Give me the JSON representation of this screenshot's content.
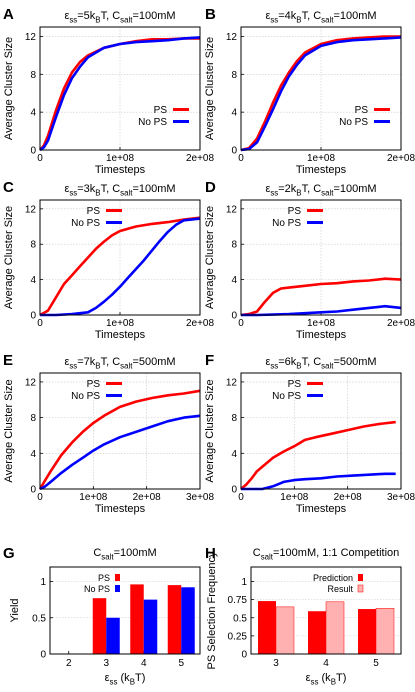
{
  "colors": {
    "ps": "#ff0000",
    "nops": "#0000ff",
    "result": "#ffb0b0",
    "grid": "#c8c8c8",
    "axis": "#000000"
  },
  "chart_data": [
    {
      "panel": "A",
      "type": "line",
      "title_parts": [
        "ε",
        "ss",
        "=5k",
        "B",
        "T, C",
        "salt",
        "=100mM"
      ],
      "xlabel": "Timesteps",
      "ylabel": "Average Cluster Size",
      "xlim": [
        0,
        200000000
      ],
      "ylim": [
        0,
        13
      ],
      "xticks": [
        0,
        100000000,
        200000000
      ],
      "xtick_labels": [
        "0",
        "1e+08",
        "2e+08"
      ],
      "yticks": [
        0,
        4,
        8,
        12
      ],
      "ytick_labels": [
        "0",
        "4",
        "8",
        "12"
      ],
      "legend_position": "bottom-right",
      "series": [
        {
          "name": "PS",
          "color": "#ff0000",
          "x": [
            0,
            5000000,
            10000000,
            20000000,
            30000000,
            40000000,
            50000000,
            60000000,
            80000000,
            100000000,
            120000000,
            140000000,
            160000000,
            180000000,
            200000000
          ],
          "y": [
            0,
            0.5,
            1.5,
            4.2,
            6.5,
            8.2,
            9.3,
            10.0,
            10.8,
            11.2,
            11.5,
            11.7,
            11.7,
            11.8,
            11.8
          ]
        },
        {
          "name": "No PS",
          "color": "#0000ff",
          "x": [
            0,
            5000000,
            10000000,
            20000000,
            30000000,
            40000000,
            50000000,
            60000000,
            80000000,
            100000000,
            120000000,
            140000000,
            160000000,
            180000000,
            200000000
          ],
          "y": [
            0,
            0.3,
            1.0,
            3.5,
            5.8,
            7.6,
            8.8,
            9.8,
            10.8,
            11.2,
            11.4,
            11.5,
            11.6,
            11.8,
            11.9
          ]
        }
      ]
    },
    {
      "panel": "B",
      "type": "line",
      "title_parts": [
        "ε",
        "ss",
        "=4k",
        "B",
        "T, C",
        "salt",
        "=100mM"
      ],
      "xlabel": "Timesteps",
      "ylabel": "Average Cluster Size",
      "xlim": [
        0,
        200000000
      ],
      "ylim": [
        0,
        13
      ],
      "xticks": [
        0,
        100000000,
        200000000
      ],
      "xtick_labels": [
        "0",
        "1e+08",
        "2e+08"
      ],
      "yticks": [
        0,
        4,
        8,
        12
      ],
      "ytick_labels": [
        "0",
        "4",
        "8",
        "12"
      ],
      "legend_position": "bottom-right",
      "series": [
        {
          "name": "PS",
          "color": "#ff0000",
          "x": [
            0,
            10000000,
            20000000,
            30000000,
            40000000,
            50000000,
            60000000,
            70000000,
            80000000,
            100000000,
            120000000,
            140000000,
            160000000,
            180000000,
            200000000
          ],
          "y": [
            0,
            0.2,
            1.2,
            3.0,
            5.0,
            6.8,
            8.2,
            9.4,
            10.3,
            11.2,
            11.6,
            11.8,
            11.9,
            12.0,
            12.0
          ]
        },
        {
          "name": "No PS",
          "color": "#0000ff",
          "x": [
            0,
            10000000,
            20000000,
            30000000,
            40000000,
            50000000,
            60000000,
            70000000,
            80000000,
            100000000,
            120000000,
            140000000,
            160000000,
            180000000,
            200000000
          ],
          "y": [
            0,
            0.1,
            0.8,
            2.5,
            4.3,
            6.2,
            7.8,
            9.0,
            10.0,
            11.0,
            11.4,
            11.6,
            11.7,
            11.8,
            11.9
          ]
        }
      ]
    },
    {
      "panel": "C",
      "type": "line",
      "title_parts": [
        "ε",
        "ss",
        "=3k",
        "B",
        "T, C",
        "salt",
        "=100mM"
      ],
      "xlabel": "Timesteps",
      "ylabel": "Average Cluster Size",
      "xlim": [
        0,
        200000000
      ],
      "ylim": [
        0,
        13
      ],
      "xticks": [
        0,
        100000000,
        200000000
      ],
      "xtick_labels": [
        "0",
        "1e+08",
        "2e+08"
      ],
      "yticks": [
        0,
        4,
        8,
        12
      ],
      "ytick_labels": [
        "0",
        "4",
        "8",
        "12"
      ],
      "legend_position": "top-left",
      "series": [
        {
          "name": "PS",
          "color": "#ff0000",
          "x": [
            0,
            10000000,
            20000000,
            30000000,
            40000000,
            50000000,
            60000000,
            70000000,
            80000000,
            90000000,
            100000000,
            120000000,
            140000000,
            160000000,
            180000000,
            200000000
          ],
          "y": [
            0,
            0.5,
            2.0,
            3.5,
            4.5,
            5.5,
            6.5,
            7.5,
            8.3,
            9.0,
            9.5,
            10.0,
            10.3,
            10.5,
            10.8,
            11.0
          ]
        },
        {
          "name": "No PS",
          "color": "#0000ff",
          "x": [
            0,
            20000000,
            40000000,
            60000000,
            70000000,
            80000000,
            90000000,
            100000000,
            110000000,
            120000000,
            130000000,
            140000000,
            150000000,
            160000000,
            170000000,
            180000000,
            200000000
          ],
          "y": [
            0,
            0,
            0.1,
            0.3,
            0.8,
            1.5,
            2.3,
            3.2,
            4.2,
            5.2,
            6.2,
            7.3,
            8.4,
            9.4,
            10.2,
            10.7,
            10.9
          ]
        }
      ]
    },
    {
      "panel": "D",
      "type": "line",
      "title_parts": [
        "ε",
        "ss",
        "=2k",
        "B",
        "T, C",
        "salt",
        "=100mM"
      ],
      "xlabel": "Timesteps",
      "ylabel": "Average Cluster Size",
      "xlim": [
        0,
        200000000
      ],
      "ylim": [
        0,
        13
      ],
      "xticks": [
        0,
        100000000,
        200000000
      ],
      "xtick_labels": [
        "0",
        "1e+08",
        "2e+08"
      ],
      "yticks": [
        0,
        4,
        8,
        12
      ],
      "ytick_labels": [
        "0",
        "4",
        "8",
        "12"
      ],
      "legend_position": "top-left",
      "series": [
        {
          "name": "PS",
          "color": "#ff0000",
          "x": [
            0,
            10000000,
            20000000,
            30000000,
            40000000,
            50000000,
            60000000,
            80000000,
            100000000,
            120000000,
            140000000,
            160000000,
            180000000,
            200000000
          ],
          "y": [
            0,
            0.1,
            0.4,
            1.5,
            2.5,
            3.0,
            3.1,
            3.3,
            3.5,
            3.6,
            3.8,
            3.9,
            4.1,
            4.0
          ]
        },
        {
          "name": "No PS",
          "color": "#0000ff",
          "x": [
            0,
            20000000,
            40000000,
            60000000,
            80000000,
            100000000,
            120000000,
            140000000,
            160000000,
            180000000,
            200000000
          ],
          "y": [
            0,
            0,
            0.05,
            0.1,
            0.2,
            0.3,
            0.4,
            0.6,
            0.8,
            1.0,
            0.8
          ]
        }
      ]
    },
    {
      "panel": "E",
      "type": "line",
      "title_parts": [
        "ε",
        "ss",
        "=7k",
        "B",
        "T, C",
        "salt",
        "=500mM"
      ],
      "xlabel": "Timesteps",
      "ylabel": "Average Cluster Size",
      "xlim": [
        0,
        300000000
      ],
      "ylim": [
        0,
        13
      ],
      "xticks": [
        0,
        100000000,
        200000000,
        300000000
      ],
      "xtick_labels": [
        "0",
        "1e+08",
        "2e+08",
        "3e+08"
      ],
      "yticks": [
        0,
        4,
        8,
        12
      ],
      "ytick_labels": [
        "0",
        "4",
        "8",
        "12"
      ],
      "legend_position": "top-left",
      "series": [
        {
          "name": "PS",
          "color": "#ff0000",
          "x": [
            0,
            10000000,
            20000000,
            40000000,
            60000000,
            80000000,
            100000000,
            120000000,
            150000000,
            180000000,
            210000000,
            240000000,
            270000000,
            300000000
          ],
          "y": [
            0,
            1.0,
            2.0,
            3.8,
            5.2,
            6.4,
            7.4,
            8.2,
            9.2,
            9.8,
            10.2,
            10.5,
            10.7,
            11.0
          ]
        },
        {
          "name": "No PS",
          "color": "#0000ff",
          "x": [
            0,
            10000000,
            20000000,
            40000000,
            60000000,
            80000000,
            100000000,
            120000000,
            150000000,
            180000000,
            210000000,
            240000000,
            270000000,
            300000000
          ],
          "y": [
            0,
            0.3,
            0.8,
            1.8,
            2.7,
            3.5,
            4.3,
            5.0,
            5.8,
            6.4,
            7.0,
            7.6,
            8.0,
            8.2
          ]
        }
      ]
    },
    {
      "panel": "F",
      "type": "line",
      "title_parts": [
        "ε",
        "ss",
        "=6k",
        "B",
        "T, C",
        "salt",
        "=500mM"
      ],
      "xlabel": "Timesteps",
      "ylabel": "Average Cluster Size",
      "xlim": [
        0,
        300000000
      ],
      "ylim": [
        0,
        13
      ],
      "xticks": [
        0,
        100000000,
        200000000,
        300000000
      ],
      "xtick_labels": [
        "0",
        "1e+08",
        "2e+08",
        "3e+08"
      ],
      "yticks": [
        0,
        4,
        8,
        12
      ],
      "ytick_labels": [
        "0",
        "4",
        "8",
        "12"
      ],
      "legend_position": "top-left",
      "series": [
        {
          "name": "PS",
          "color": "#ff0000",
          "x": [
            0,
            10000000,
            20000000,
            30000000,
            40000000,
            60000000,
            80000000,
            100000000,
            120000000,
            140000000,
            170000000,
            200000000,
            230000000,
            260000000,
            290000000
          ],
          "y": [
            0,
            0.5,
            1.2,
            2.0,
            2.5,
            3.5,
            4.2,
            4.8,
            5.5,
            5.8,
            6.2,
            6.6,
            7.0,
            7.3,
            7.5
          ]
        },
        {
          "name": "No PS",
          "color": "#0000ff",
          "x": [
            0,
            40000000,
            60000000,
            80000000,
            100000000,
            120000000,
            150000000,
            180000000,
            210000000,
            240000000,
            270000000,
            290000000
          ],
          "y": [
            0,
            0,
            0.3,
            0.8,
            1.0,
            1.1,
            1.2,
            1.4,
            1.5,
            1.6,
            1.7,
            1.7
          ]
        }
      ]
    },
    {
      "panel": "G",
      "type": "bar",
      "title_parts": [
        "",
        "",
        "C",
        "salt",
        "=100mM"
      ],
      "xlabel_parts": [
        "ε",
        "ss",
        " (k",
        "B",
        "T)"
      ],
      "ylabel": "Yield",
      "categories": [
        "2",
        "3",
        "4",
        "5"
      ],
      "ylim": [
        0,
        1.2
      ],
      "yticks": [
        0,
        0.5,
        1
      ],
      "ytick_labels": [
        "0",
        "0.5",
        "1"
      ],
      "legend_position": "top-left",
      "series": [
        {
          "name": "PS",
          "color": "#ff0000",
          "values": [
            0,
            0.77,
            0.96,
            0.95
          ]
        },
        {
          "name": "No PS",
          "color": "#0000ff",
          "values": [
            0,
            0.5,
            0.75,
            0.92
          ]
        }
      ]
    },
    {
      "panel": "H",
      "type": "bar",
      "title_parts": [
        "",
        "",
        "C",
        "salt",
        "=100mM, 1:1 Competition"
      ],
      "xlabel_parts": [
        "ε",
        "ss",
        " (k",
        "B",
        "T)"
      ],
      "ylabel": "PS Selection Frequency",
      "categories": [
        "3",
        "4",
        "5"
      ],
      "ylim": [
        0,
        1.2
      ],
      "yticks": [
        0,
        0.25,
        0.5,
        0.75,
        1
      ],
      "ytick_labels": [
        "0",
        "0.25",
        "0.5",
        "0.75",
        "1"
      ],
      "legend_position": "top-right",
      "series": [
        {
          "name": "Prediction",
          "color": "#ff0000",
          "values": [
            0.73,
            0.59,
            0.62
          ]
        },
        {
          "name": "Result",
          "color": "#ffb0b0",
          "values": [
            0.65,
            0.72,
            0.63
          ]
        }
      ]
    }
  ]
}
